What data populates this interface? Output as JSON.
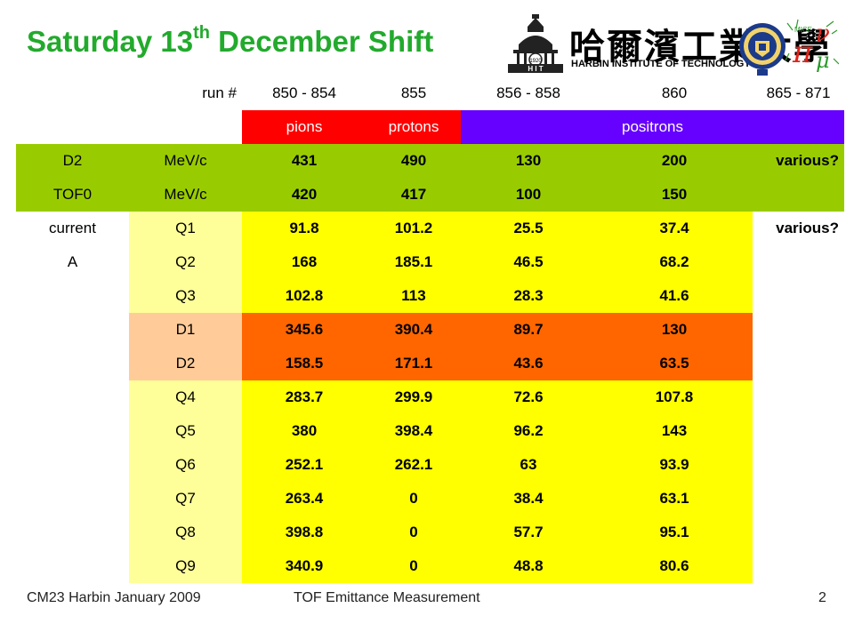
{
  "title": {
    "prefix": "Saturday 13",
    "sup": "th",
    "suffix": " December Shift"
  },
  "logos": {
    "chinese_name": "哈爾濱工業大學",
    "english_name": "HARBIN INSTITUTE OF TECHNOLOGY",
    "tower_year": "1920",
    "tower_letters": "H I T",
    "mice_letters": "MICE"
  },
  "table": {
    "header": [
      "run #",
      "850 - 854",
      "855",
      "856 - 858",
      "860",
      "865 - 871"
    ],
    "particles": [
      "pions",
      "protons",
      "positrons"
    ],
    "d2": {
      "label": "D2",
      "unit": "MeV/c",
      "values": [
        "431",
        "490",
        "130",
        "200",
        "various?"
      ]
    },
    "tof0": {
      "label": "TOF0",
      "unit": "MeV/c",
      "values": [
        "420",
        "417",
        "100",
        "150"
      ]
    },
    "current_label": "current",
    "current_unit": "A",
    "current_note": "various?",
    "magnets": [
      {
        "name": "Q1",
        "values": [
          "91.8",
          "101.2",
          "25.5",
          "37.4"
        ]
      },
      {
        "name": "Q2",
        "values": [
          "168",
          "185.1",
          "46.5",
          "68.2"
        ]
      },
      {
        "name": "Q3",
        "values": [
          "102.8",
          "113",
          "28.3",
          "41.6"
        ]
      },
      {
        "name": "D1",
        "values": [
          "345.6",
          "390.4",
          "89.7",
          "130"
        ]
      },
      {
        "name": "D2",
        "values": [
          "158.5",
          "171.1",
          "43.6",
          "63.5"
        ]
      },
      {
        "name": "Q4",
        "values": [
          "283.7",
          "299.9",
          "72.6",
          "107.8"
        ]
      },
      {
        "name": "Q5",
        "values": [
          "380",
          "398.4",
          "96.2",
          "143"
        ]
      },
      {
        "name": "Q6",
        "values": [
          "252.1",
          "262.1",
          "63",
          "93.9"
        ]
      },
      {
        "name": "Q7",
        "values": [
          "263.4",
          "0",
          "38.4",
          "63.1"
        ]
      },
      {
        "name": "Q8",
        "values": [
          "398.8",
          "0",
          "57.7",
          "95.1"
        ]
      },
      {
        "name": "Q9",
        "values": [
          "340.9",
          "0",
          "48.8",
          "80.6"
        ]
      }
    ]
  },
  "footer": {
    "left": "CM23 Harbin January 2009",
    "center": "TOF Emittance Measurement",
    "page": "2"
  },
  "colors": {
    "title": "#22aa2c",
    "pions": "#ff0000",
    "protons": "#ff0000",
    "positrons": "#6600ff",
    "momentum_rows": "#99cc00",
    "quad_rows": "#ffff00",
    "quad_label": "#ffff99",
    "dipole_rows": "#ff6600",
    "dipole_label": "#ffcc99"
  }
}
